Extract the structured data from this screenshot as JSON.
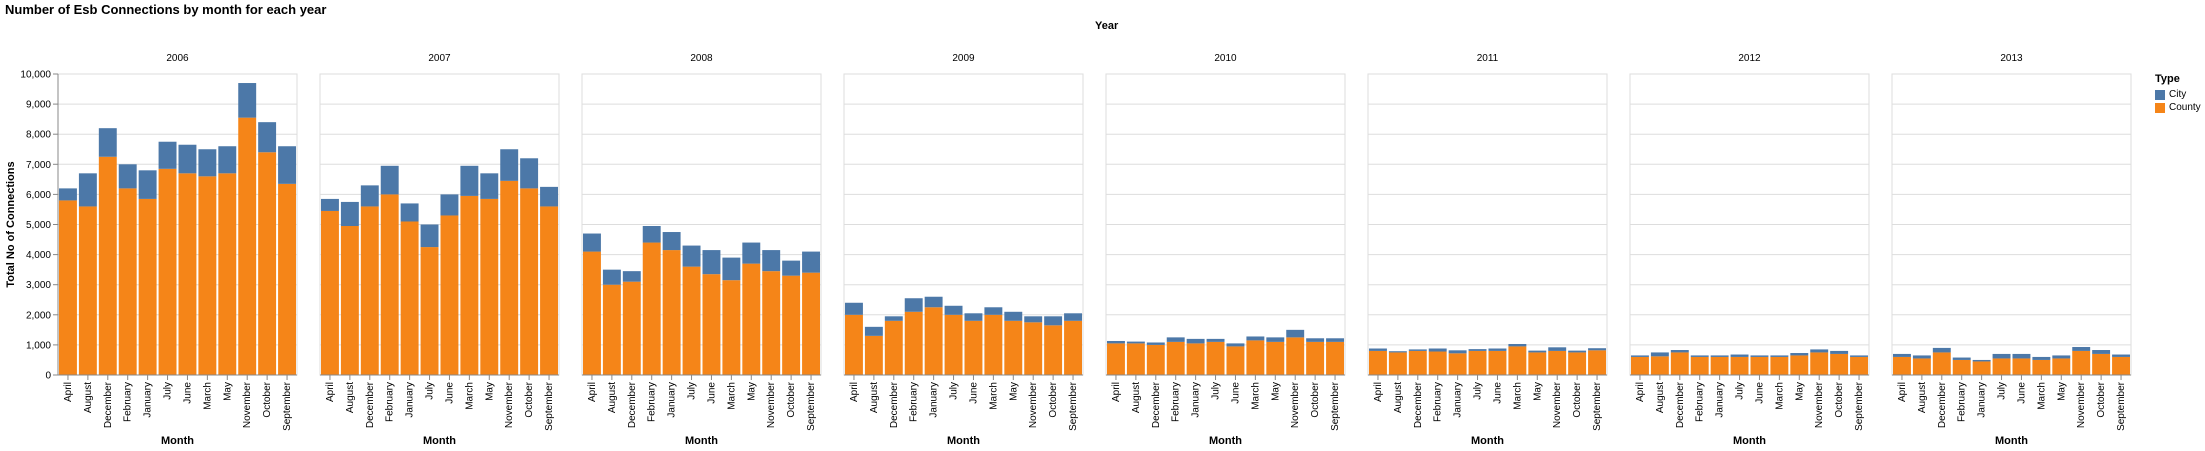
{
  "chart_data": {
    "type": "bar",
    "stacked": true,
    "title": "Number of Esb Connections by month for each year",
    "column_header": "Year",
    "xlabel": "Month",
    "ylabel": "Total No of Connections",
    "ylim": [
      0,
      10000
    ],
    "yticks": [
      0,
      1000,
      2000,
      3000,
      4000,
      5000,
      6000,
      7000,
      8000,
      9000,
      10000
    ],
    "ytick_labels": [
      "0",
      "1,000",
      "2,000",
      "3,000",
      "4,000",
      "5,000",
      "6,000",
      "7,000",
      "8,000",
      "9,000",
      "10,000"
    ],
    "categories": [
      "April",
      "August",
      "December",
      "February",
      "January",
      "July",
      "June",
      "March",
      "May",
      "November",
      "October",
      "September"
    ],
    "legend": {
      "title": "Type",
      "items": [
        {
          "label": "City",
          "color": "#4c78a8"
        },
        {
          "label": "County",
          "color": "#f58518"
        }
      ]
    },
    "facets": [
      {
        "year": "2006",
        "county": [
          5800,
          5600,
          7250,
          6200,
          5850,
          6850,
          6700,
          6600,
          6700,
          8550,
          7400,
          6350
        ],
        "city": [
          400,
          1100,
          950,
          800,
          950,
          900,
          950,
          900,
          900,
          1150,
          1000,
          1250
        ]
      },
      {
        "year": "2007",
        "county": [
          5450,
          4950,
          5600,
          6000,
          5100,
          4250,
          5300,
          5950,
          5850,
          6450,
          6200,
          5600
        ],
        "city": [
          400,
          800,
          700,
          950,
          600,
          750,
          700,
          1000,
          850,
          1050,
          1000,
          650
        ]
      },
      {
        "year": "2008",
        "county": [
          4100,
          3000,
          3100,
          4400,
          4150,
          3600,
          3350,
          3150,
          3700,
          3450,
          3300,
          3400
        ],
        "city": [
          600,
          500,
          350,
          550,
          600,
          700,
          800,
          750,
          700,
          700,
          500,
          700
        ]
      },
      {
        "year": "2009",
        "county": [
          2000,
          1300,
          1800,
          2100,
          2250,
          2000,
          1800,
          2000,
          1800,
          1750,
          1650,
          1800
        ],
        "city": [
          400,
          300,
          150,
          450,
          350,
          300,
          250,
          250,
          300,
          200,
          300,
          250
        ]
      },
      {
        "year": "2010",
        "county": [
          1050,
          1050,
          1000,
          1100,
          1050,
          1100,
          950,
          1150,
          1100,
          1250,
          1100,
          1100
        ],
        "city": [
          80,
          60,
          80,
          150,
          150,
          100,
          100,
          130,
          150,
          250,
          120,
          120
        ]
      },
      {
        "year": "2011",
        "county": [
          800,
          750,
          800,
          780,
          720,
          800,
          800,
          950,
          750,
          800,
          750,
          820
        ],
        "city": [
          80,
          40,
          50,
          100,
          100,
          60,
          80,
          80,
          60,
          120,
          60,
          70
        ]
      },
      {
        "year": "2012",
        "county": [
          600,
          620,
          750,
          600,
          600,
          600,
          600,
          600,
          650,
          750,
          700,
          600
        ],
        "city": [
          50,
          130,
          80,
          50,
          50,
          80,
          50,
          50,
          80,
          100,
          100,
          50
        ]
      },
      {
        "year": "2013",
        "county": [
          600,
          550,
          750,
          500,
          450,
          550,
          550,
          500,
          550,
          800,
          700,
          600
        ],
        "city": [
          100,
          100,
          150,
          80,
          50,
          150,
          150,
          100,
          100,
          130,
          130,
          80
        ]
      }
    ]
  }
}
